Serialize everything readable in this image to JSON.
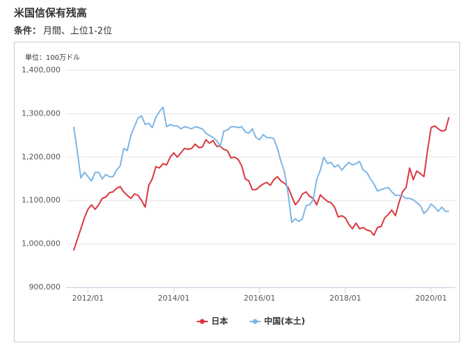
{
  "chart_data": {
    "type": "line",
    "title": "米国信保有残高",
    "condition_label": "条件：",
    "condition": "月間、上位1-2位",
    "y_unit": "単位：100万ドル",
    "categories": [
      null,
      null,
      null,
      null,
      "2012/01",
      null,
      null,
      null,
      null,
      null,
      null,
      null,
      null,
      null,
      null,
      null,
      null,
      null,
      null,
      null,
      null,
      null,
      null,
      null,
      null,
      null,
      null,
      null,
      "2014/01",
      null,
      null,
      null,
      null,
      null,
      null,
      null,
      null,
      null,
      null,
      null,
      null,
      null,
      null,
      null,
      null,
      null,
      null,
      null,
      null,
      null,
      null,
      null,
      "2016/01",
      null,
      null,
      null,
      null,
      null,
      null,
      null,
      null,
      null,
      null,
      null,
      null,
      null,
      null,
      null,
      null,
      null,
      null,
      null,
      null,
      null,
      null,
      null,
      "2018/01",
      null,
      null,
      null,
      null,
      null,
      null,
      null,
      null,
      null,
      null,
      null,
      null,
      null,
      null,
      null,
      null,
      null,
      null,
      null,
      null,
      null,
      null,
      null,
      "2020/01",
      null,
      null,
      null,
      null,
      null
    ],
    "series": [
      {
        "name": "日本",
        "color": "#d9363e",
        "values": [
          985000,
          1010000,
          1035000,
          1060000,
          1080000,
          1090000,
          1080000,
          1090000,
          1105000,
          1108000,
          1118000,
          1120000,
          1128000,
          1132000,
          1120000,
          1112000,
          1105000,
          1115000,
          1112000,
          1100000,
          1085000,
          1135000,
          1150000,
          1178000,
          1175000,
          1185000,
          1182000,
          1200000,
          1210000,
          1200000,
          1210000,
          1220000,
          1218000,
          1220000,
          1230000,
          1222000,
          1223000,
          1240000,
          1232000,
          1238000,
          1225000,
          1225000,
          1218000,
          1215000,
          1198000,
          1200000,
          1195000,
          1180000,
          1150000,
          1145000,
          1125000,
          1125000,
          1132000,
          1138000,
          1142000,
          1135000,
          1148000,
          1155000,
          1145000,
          1140000,
          1130000,
          1110000,
          1090000,
          1100000,
          1115000,
          1120000,
          1110000,
          1105000,
          1090000,
          1113000,
          1105000,
          1098000,
          1095000,
          1085000,
          1062000,
          1065000,
          1060000,
          1045000,
          1035000,
          1048000,
          1035000,
          1038000,
          1032000,
          1030000,
          1020000,
          1038000,
          1040000,
          1060000,
          1068000,
          1078000,
          1065000,
          1095000,
          1120000,
          1130000,
          1175000,
          1148000,
          1168000,
          1162000,
          1155000,
          1215000,
          1268000,
          1272000,
          1265000,
          1260000,
          1262000,
          1292000
        ]
      },
      {
        "name": "中国(本土)",
        "color": "#7cb5e6",
        "values": [
          1270000,
          1215000,
          1152000,
          1165000,
          1155000,
          1145000,
          1165000,
          1165000,
          1150000,
          1160000,
          1155000,
          1155000,
          1170000,
          1180000,
          1220000,
          1215000,
          1250000,
          1270000,
          1290000,
          1295000,
          1275000,
          1278000,
          1268000,
          1292000,
          1305000,
          1315000,
          1270000,
          1275000,
          1272000,
          1272000,
          1265000,
          1270000,
          1268000,
          1265000,
          1270000,
          1268000,
          1265000,
          1255000,
          1250000,
          1245000,
          1238000,
          1225000,
          1260000,
          1262000,
          1270000,
          1270000,
          1268000,
          1270000,
          1258000,
          1255000,
          1265000,
          1245000,
          1240000,
          1252000,
          1245000,
          1245000,
          1242000,
          1220000,
          1190000,
          1165000,
          1115000,
          1050000,
          1058000,
          1052000,
          1058000,
          1088000,
          1090000,
          1102000,
          1148000,
          1170000,
          1200000,
          1185000,
          1188000,
          1177000,
          1182000,
          1170000,
          1180000,
          1188000,
          1182000,
          1185000,
          1190000,
          1170000,
          1165000,
          1150000,
          1138000,
          1122000,
          1125000,
          1128000,
          1130000,
          1120000,
          1112000,
          1112000,
          1110000,
          1105000,
          1105000,
          1102000,
          1095000,
          1088000,
          1070000,
          1078000,
          1092000,
          1085000,
          1075000,
          1085000,
          1075000,
          1075000
        ]
      }
    ],
    "ylim": [
      900000,
      1400000
    ],
    "yticks": [
      {
        "value": 900000,
        "label": "900,000"
      },
      {
        "value": 1000000,
        "label": "1,000,000"
      },
      {
        "value": 1100000,
        "label": "1,100,000"
      },
      {
        "value": 1200000,
        "label": "1,200,000"
      },
      {
        "value": 1300000,
        "label": "1,300,000"
      },
      {
        "value": 1400000,
        "label": "1,400,000"
      }
    ],
    "grid": true,
    "legend": "bottom"
  }
}
